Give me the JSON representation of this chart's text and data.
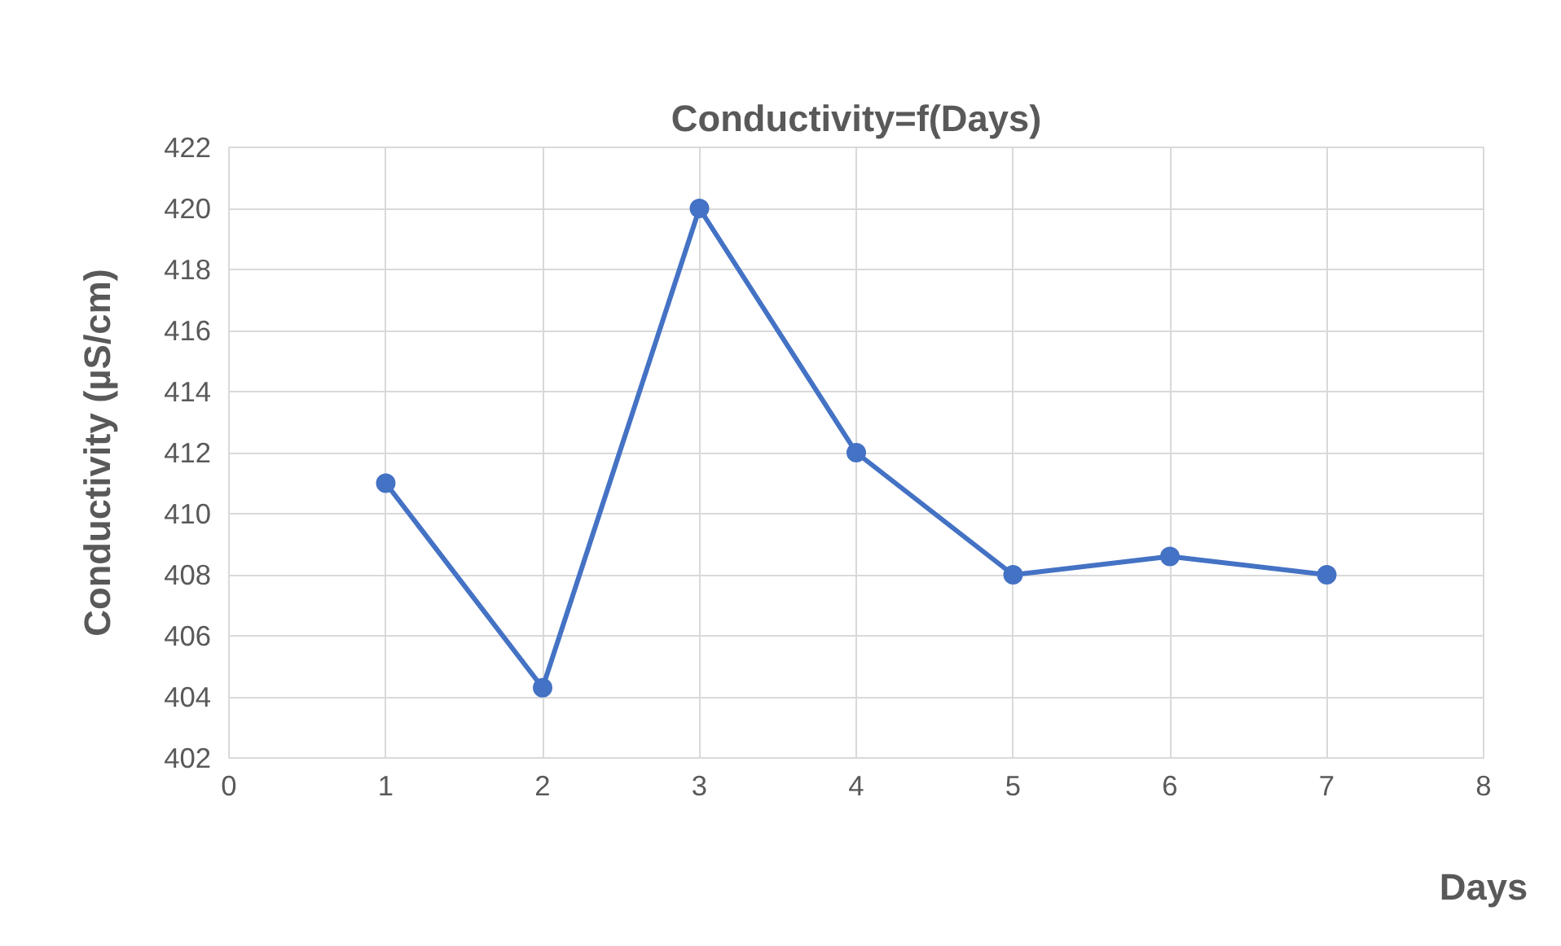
{
  "chart_data": {
    "type": "line",
    "title": "Conductivity=f(Days)",
    "xlabel": "Days",
    "ylabel": "Conductivity (µS/cm)",
    "x": [
      1,
      2,
      3,
      4,
      5,
      6,
      7
    ],
    "series": [
      {
        "color": "#4472c4",
        "values": [
          411,
          404.3,
          420,
          412,
          408,
          408.6,
          408
        ]
      }
    ],
    "xlim": [
      0,
      8
    ],
    "xticks": [
      0,
      1,
      2,
      3,
      4,
      5,
      6,
      7,
      8
    ],
    "ylim": [
      402,
      422
    ],
    "yticks": [
      402,
      404,
      406,
      408,
      410,
      412,
      414,
      416,
      418,
      420,
      422
    ],
    "grid": true,
    "marker": "circle",
    "line_style": "solid"
  }
}
